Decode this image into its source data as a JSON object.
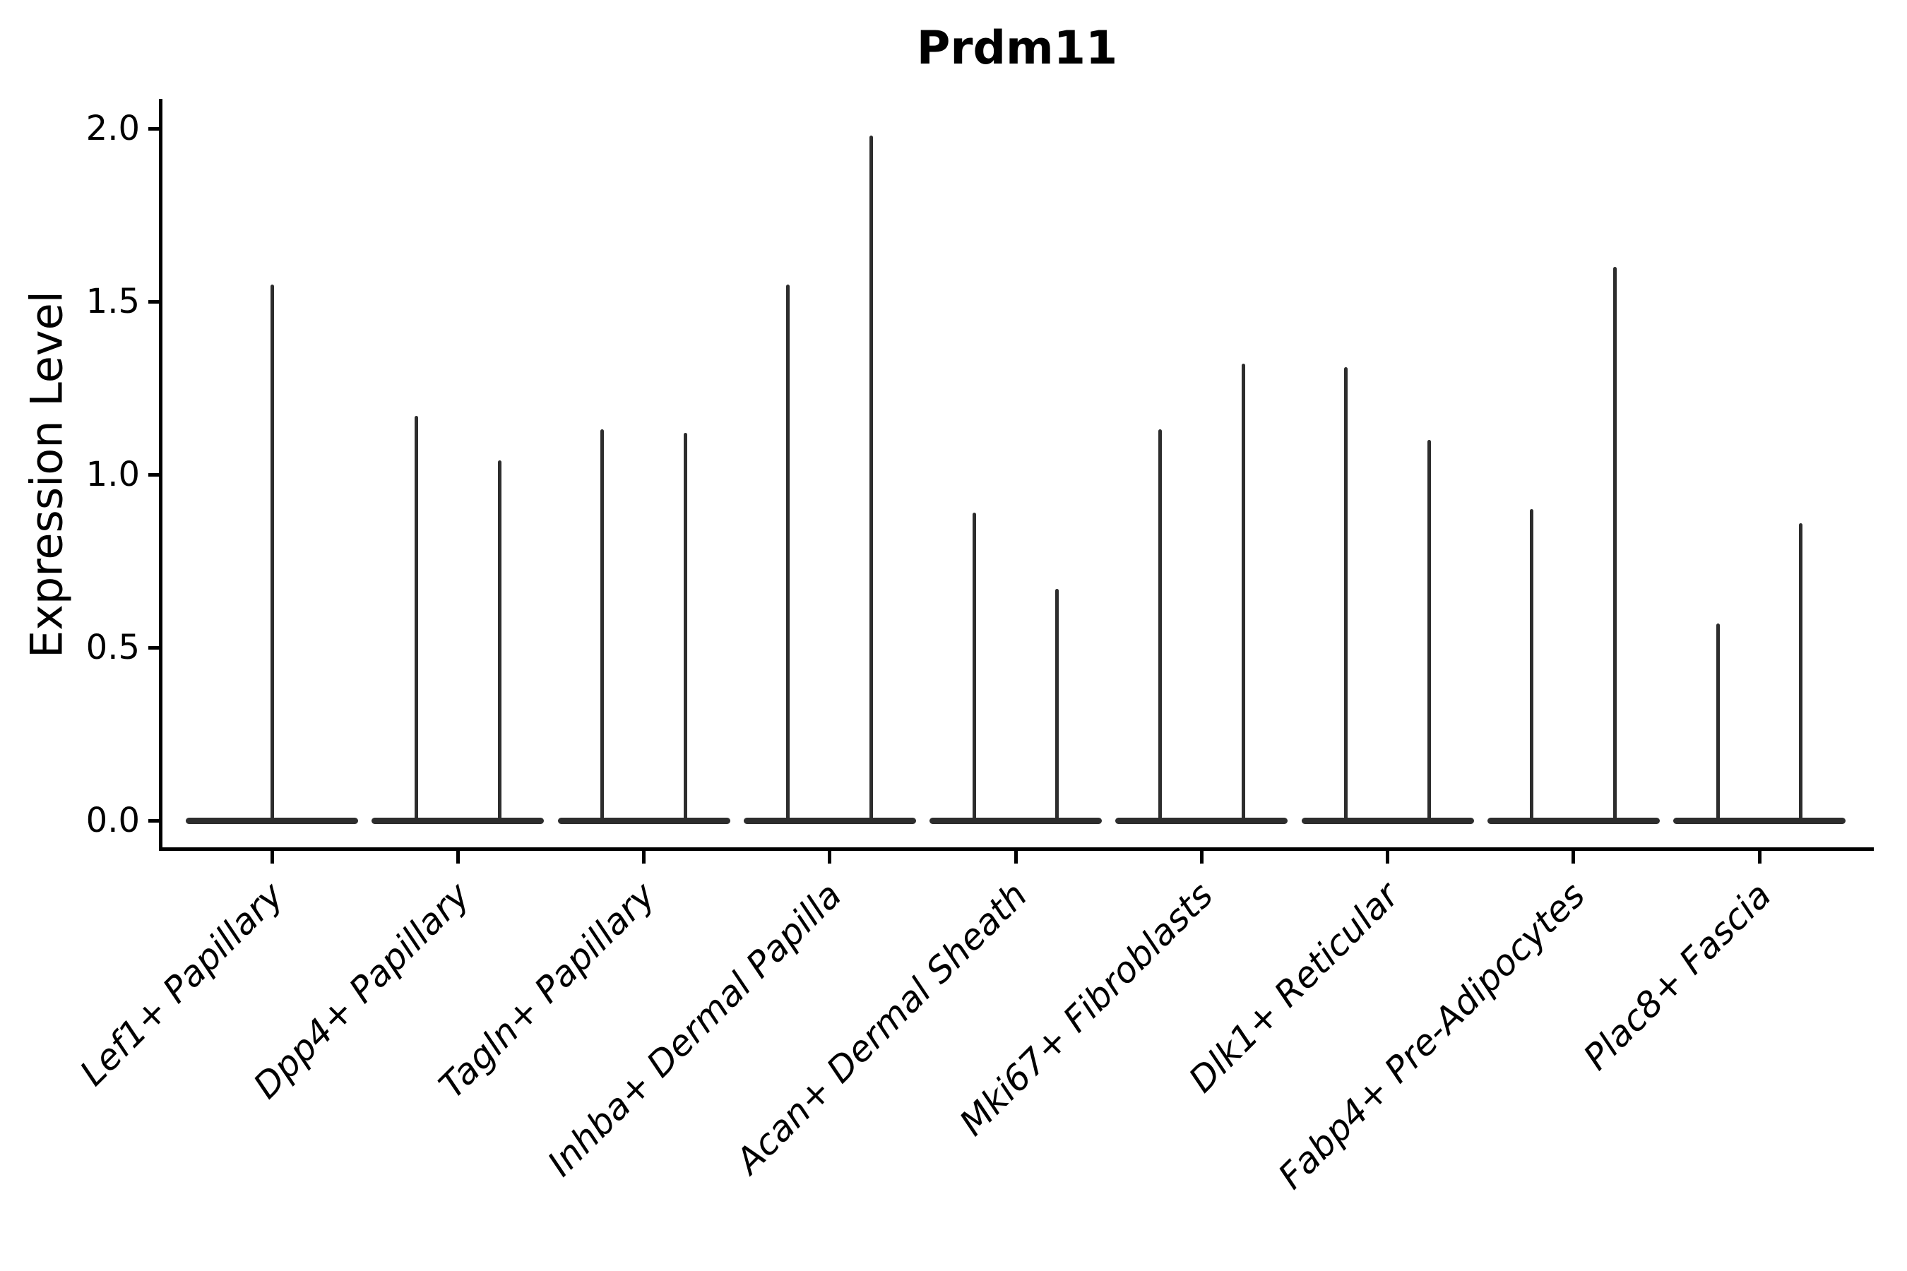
{
  "figure": {
    "title": "Prdm11",
    "background_color": "#ffffff",
    "axis_color": "#000000",
    "violin_color": "#2d2d2d"
  },
  "chart_data": {
    "type": "violin",
    "title": "Prdm11",
    "xlabel": "",
    "ylabel": "Expression Level",
    "ylim": [
      -0.09,
      2.09
    ],
    "yticks": [
      0.0,
      0.5,
      1.0,
      1.5,
      2.0
    ],
    "ytick_labels": [
      "0.0",
      "0.5",
      "1.0",
      "1.5",
      "2.0"
    ],
    "grid": false,
    "legend": "none",
    "description": "Violin plot of single-cell expression; each cluster shows a flat density mass at 0 with thin spike(s) rising to the maximum expression value.",
    "base_width_frac": 0.93,
    "categories": [
      "Lef1+ Papillary",
      "Dpp4+ Papillary",
      "Tagln+ Papillary",
      "Inhba+ Dermal Papilla",
      "Acan+ Dermal Sheath",
      "Mki67+ Fibroblasts",
      "Dlk1+ Reticular",
      "Fabp4+ Pre-Adipocytes",
      "Plac8+ Fascia"
    ],
    "violins": [
      {
        "category": "Lef1+ Papillary",
        "spikes": [
          {
            "offset": 0.0,
            "max": 1.55
          }
        ]
      },
      {
        "category": "Dpp4+ Papillary",
        "spikes": [
          {
            "offset": -0.224,
            "max": 1.17
          },
          {
            "offset": 0.224,
            "max": 1.04
          }
        ]
      },
      {
        "category": "Tagln+ Papillary",
        "spikes": [
          {
            "offset": -0.224,
            "max": 1.13
          },
          {
            "offset": 0.224,
            "max": 1.12
          }
        ]
      },
      {
        "category": "Inhba+ Dermal Papilla",
        "spikes": [
          {
            "offset": -0.224,
            "max": 1.55
          },
          {
            "offset": 0.224,
            "max": 1.98
          }
        ]
      },
      {
        "category": "Acan+ Dermal Sheath",
        "spikes": [
          {
            "offset": -0.224,
            "max": 0.89
          },
          {
            "offset": 0.224,
            "max": 0.67
          }
        ]
      },
      {
        "category": "Mki67+ Fibroblasts",
        "spikes": [
          {
            "offset": -0.224,
            "max": 1.13
          },
          {
            "offset": 0.224,
            "max": 1.32
          }
        ]
      },
      {
        "category": "Dlk1+ Reticular",
        "spikes": [
          {
            "offset": -0.224,
            "max": 1.31
          },
          {
            "offset": 0.224,
            "max": 1.1
          }
        ]
      },
      {
        "category": "Fabp4+ Pre-Adipocytes",
        "spikes": [
          {
            "offset": -0.224,
            "max": 0.9
          },
          {
            "offset": 0.224,
            "max": 1.6
          }
        ]
      },
      {
        "category": "Plac8+ Fascia",
        "spikes": [
          {
            "offset": -0.224,
            "max": 0.57
          },
          {
            "offset": 0.224,
            "max": 0.86
          }
        ]
      }
    ]
  }
}
